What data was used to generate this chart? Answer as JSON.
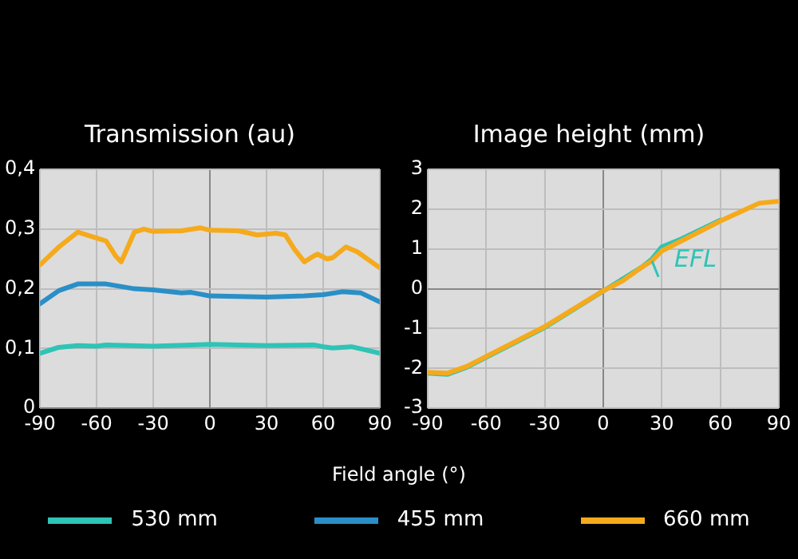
{
  "chart_data": [
    {
      "type": "line",
      "title": "Transmission (au)",
      "xlabel": "Field angle (°)",
      "legend": "bottom",
      "grid": true,
      "xlim": [
        -90,
        90
      ],
      "xticks": [
        -90,
        -60,
        -30,
        0,
        30,
        60,
        90
      ],
      "ylim": [
        0,
        0.4
      ],
      "yticks": [
        {
          "value": 0,
          "label": "0"
        },
        {
          "value": 0.1,
          "label": "0,1"
        },
        {
          "value": 0.2,
          "label": "0,2"
        },
        {
          "value": 0.3,
          "label": "0,3"
        },
        {
          "value": 0.4,
          "label": "0,4"
        }
      ],
      "series": [
        {
          "name": "530 mm",
          "color": "#2ec4b6",
          "x": [
            -90,
            -80,
            -70,
            -60,
            -55,
            -30,
            0,
            30,
            55,
            60,
            65,
            75,
            90
          ],
          "values": [
            0.092,
            0.102,
            0.105,
            0.104,
            0.106,
            0.104,
            0.107,
            0.105,
            0.106,
            0.103,
            0.101,
            0.103,
            0.092
          ]
        },
        {
          "name": "455 mm",
          "color": "#2a8fc7",
          "x": [
            -90,
            -80,
            -70,
            -55,
            -40,
            -30,
            -15,
            -10,
            0,
            30,
            50,
            60,
            70,
            80,
            90
          ],
          "values": [
            0.175,
            0.197,
            0.208,
            0.208,
            0.2,
            0.198,
            0.193,
            0.194,
            0.188,
            0.186,
            0.188,
            0.19,
            0.195,
            0.193,
            0.178
          ]
        },
        {
          "name": "660 mm",
          "color": "#f5aa1c",
          "x": [
            -90,
            -80,
            -70,
            -60,
            -55,
            -50,
            -47,
            -40,
            -35,
            -30,
            -15,
            -5,
            0,
            15,
            25,
            35,
            40,
            45,
            50,
            55,
            57,
            62,
            65,
            72,
            78,
            90
          ],
          "values": [
            0.24,
            0.27,
            0.295,
            0.285,
            0.28,
            0.255,
            0.245,
            0.295,
            0.3,
            0.296,
            0.297,
            0.302,
            0.298,
            0.297,
            0.29,
            0.293,
            0.29,
            0.265,
            0.245,
            0.255,
            0.258,
            0.25,
            0.252,
            0.27,
            0.262,
            0.235
          ]
        }
      ]
    },
    {
      "type": "line",
      "title": "Image height (mm)",
      "grid": true,
      "annotations": [
        {
          "text": "EFL",
          "x": 25,
          "y": 0.7
        }
      ],
      "xlim": [
        -90,
        90
      ],
      "xticks": [
        -90,
        -60,
        -30,
        0,
        30,
        60,
        90
      ],
      "ylim": [
        -3,
        3
      ],
      "yticks": [
        -3,
        -2,
        -1,
        0,
        1,
        2,
        3
      ],
      "series": [
        {
          "color": "#2ec4b6",
          "x": [
            -90,
            -80,
            -70,
            -60,
            -30,
            20,
            25,
            30,
            40,
            60
          ],
          "values": [
            -2.12,
            -2.15,
            -1.97,
            -1.72,
            -0.97,
            0.55,
            0.75,
            1.05,
            1.25,
            1.72
          ]
        },
        {
          "color": "#f5aa1c",
          "x": [
            -90,
            -80,
            -70,
            -60,
            -30,
            0,
            10,
            20,
            25,
            30,
            40,
            60,
            80,
            90
          ],
          "values": [
            -2.1,
            -2.12,
            -1.95,
            -1.7,
            -0.95,
            -0.05,
            0.2,
            0.55,
            0.7,
            0.95,
            1.2,
            1.7,
            2.15,
            2.2
          ]
        }
      ]
    }
  ]
}
